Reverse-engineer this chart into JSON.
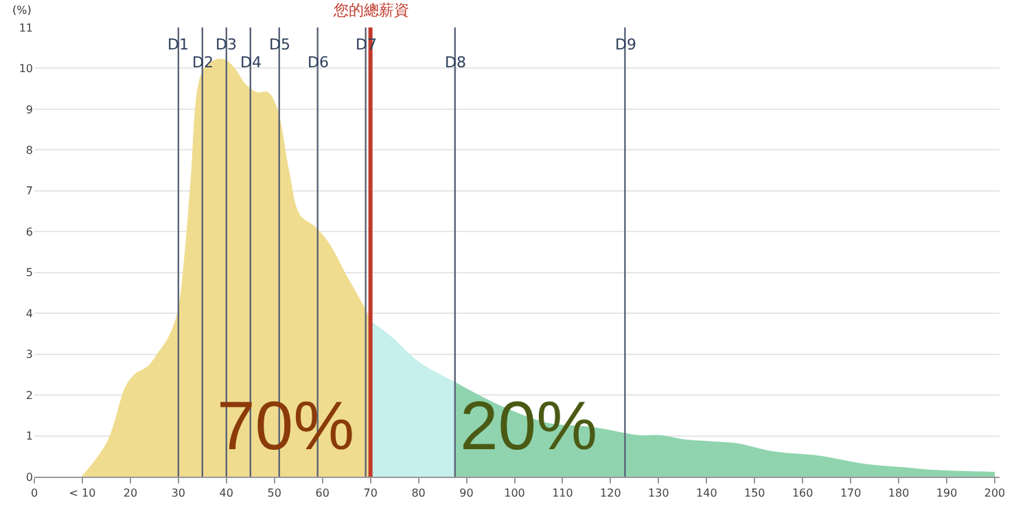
{
  "chart_data": {
    "type": "area",
    "ylabel": "(%)",
    "series": [
      {
        "color": "#f0dc8f",
        "x": [
          10,
          15.3,
          19.1,
          21,
          23.8,
          25.7,
          28,
          29.9,
          31.3,
          32.7,
          34.1,
          35.5,
          37.9,
          39.7,
          41.6,
          43.9,
          46.3,
          48.6,
          50.5,
          52.9,
          55.2,
          58.5,
          61.3,
          65,
          68.8,
          70
        ],
        "values": [
          0,
          0.85,
          2.2,
          2.5,
          2.7,
          3.0,
          3.4,
          4.0,
          5.3,
          7.3,
          9.5,
          10.0,
          10.2,
          10.2,
          10.0,
          9.6,
          9.4,
          9.4,
          9.0,
          7.5,
          6.4,
          6.1,
          5.7,
          4.9,
          4.1,
          3.8
        ]
      },
      {
        "color": "#c5f0ec",
        "x": [
          70,
          74.4,
          80,
          87.6
        ],
        "values": [
          3.8,
          3.4,
          2.8,
          2.3
        ]
      },
      {
        "color": "#8fd4ae",
        "x": [
          87.6,
          97.5,
          106.9,
          116.3,
          125.7,
          130.4,
          135.1,
          140.8,
          146.4,
          154,
          163.3,
          172.8,
          182.2,
          187,
          200
        ],
        "values": [
          2.3,
          1.7,
          1.3,
          1.2,
          1.0,
          1.0,
          0.9,
          0.85,
          0.8,
          0.6,
          0.5,
          0.3,
          0.2,
          0.15,
          0.1
        ]
      }
    ],
    "xlim": [
      0,
      201
    ],
    "xticks": [
      0,
      {
        "value": 10,
        "label": "< 10"
      },
      20,
      30,
      40,
      50,
      60,
      70,
      80,
      90,
      100,
      110,
      120,
      130,
      140,
      150,
      160,
      170,
      180,
      190,
      200
    ],
    "ylim": [
      0,
      11
    ],
    "yticks": [
      0,
      1,
      2,
      3,
      4,
      5,
      6,
      7,
      8,
      9,
      10,
      11
    ],
    "grid": "y",
    "ref_lines": [
      {
        "axis": "x",
        "value": 30,
        "label": "D1",
        "color": "#5a6478"
      },
      {
        "axis": "x",
        "value": 35,
        "label": "D2",
        "color": "#5a6478"
      },
      {
        "axis": "x",
        "value": 40,
        "label": "D3",
        "color": "#5a6478"
      },
      {
        "axis": "x",
        "value": 45,
        "label": "D4",
        "color": "#5a6478"
      },
      {
        "axis": "x",
        "value": 51,
        "label": "D5",
        "color": "#5a6478"
      },
      {
        "axis": "x",
        "value": 59,
        "label": "D6",
        "color": "#5a6478"
      },
      {
        "axis": "x",
        "value": 69,
        "label": "D7",
        "color": "#5a6478"
      },
      {
        "axis": "x",
        "value": 87.6,
        "label": "D8",
        "color": "#5a6478"
      },
      {
        "axis": "x",
        "value": 123,
        "label": "D9",
        "color": "#5a6478"
      },
      {
        "axis": "x",
        "value": 70,
        "label": "您的總薪資",
        "color": "#c0392b"
      }
    ],
    "annotations": [
      "70%",
      "20%"
    ]
  }
}
